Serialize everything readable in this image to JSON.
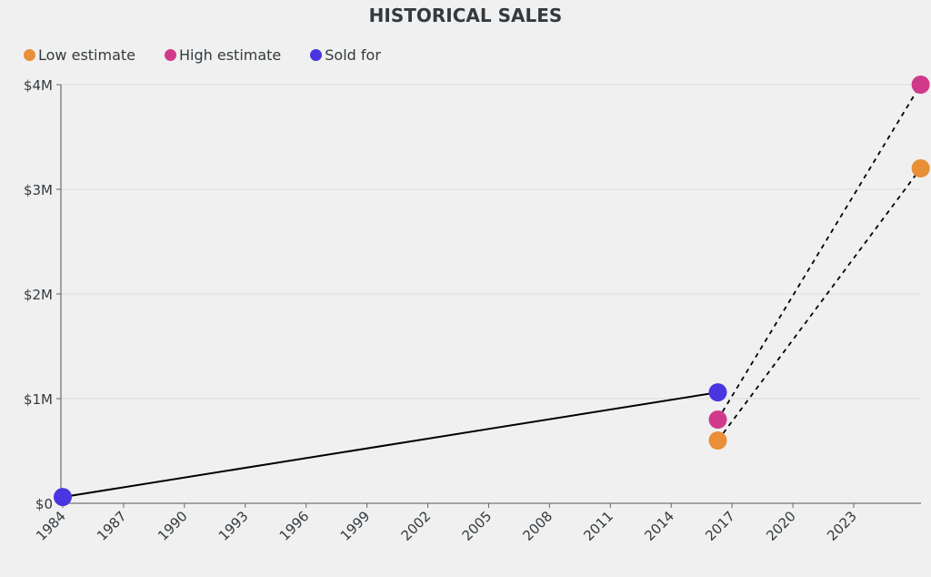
{
  "chart_data": {
    "type": "line",
    "title": "HISTORICAL SALES",
    "xlabel": "",
    "ylabel": "",
    "xlim": [
      1984,
      2026.3
    ],
    "ylim": [
      0,
      4000000
    ],
    "x_ticks": [
      "1984",
      "1987",
      "1990",
      "1993",
      "1996",
      "1999",
      "2002",
      "2005",
      "2008",
      "2011",
      "2014",
      "2017",
      "2020",
      "2023"
    ],
    "y_ticks": [
      {
        "value": 0,
        "label": "$0"
      },
      {
        "value": 1000000,
        "label": "$1M"
      },
      {
        "value": 2000000,
        "label": "$2M"
      },
      {
        "value": 3000000,
        "label": "$3M"
      },
      {
        "value": 4000000,
        "label": "$4M"
      }
    ],
    "grid": true,
    "legend_position": "top-left",
    "series": [
      {
        "name": "Low estimate",
        "color": "#e88f37",
        "points": [
          {
            "x": 2016.3,
            "y": 600000
          },
          {
            "x": 2026.3,
            "y": 3200000
          }
        ],
        "line": "dashed"
      },
      {
        "name": "High estimate",
        "color": "#d13a8b",
        "points": [
          {
            "x": 2016.3,
            "y": 800000
          },
          {
            "x": 2026.3,
            "y": 4000000
          }
        ],
        "line": "dashed"
      },
      {
        "name": "Sold for",
        "color": "#4a35e0",
        "points": [
          {
            "x": 1984,
            "y": 60000
          },
          {
            "x": 2016.3,
            "y": 1060000
          }
        ],
        "line": "solid"
      }
    ]
  }
}
